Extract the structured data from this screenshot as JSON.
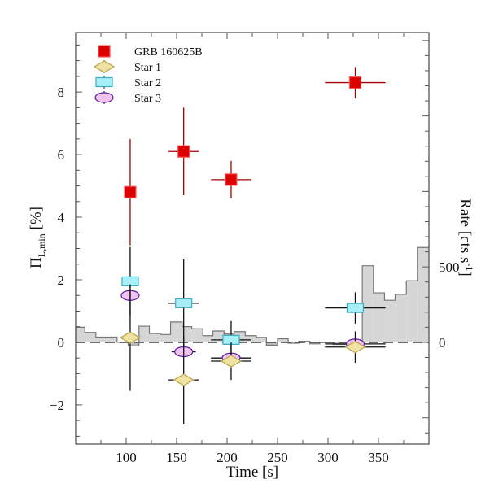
{
  "chart_data": {
    "type": "scatter",
    "title": "",
    "xlabel": "Time [s]",
    "ylabel_main": "Π",
    "ylabel_sub": "L,min",
    "ylabel_unit": " [%]",
    "y2label": "Rate [cts s",
    "y2label_sup": "-1",
    "y2label_end": "]",
    "xlim": [
      50,
      400
    ],
    "ylim": [
      -3.25,
      9.9
    ],
    "y2lim": [
      -674,
      2053
    ],
    "xticks": [
      100,
      150,
      200,
      250,
      300,
      350
    ],
    "xtick_labels": [
      "100",
      "150",
      "200",
      "250",
      "300",
      "350"
    ],
    "yticks": [
      -2,
      0,
      2,
      4,
      6,
      8
    ],
    "ytick_labels": [
      "−2",
      "0",
      "2",
      "4",
      "6",
      "8"
    ],
    "y2ticks": [
      0,
      500
    ],
    "y2tick_labels": [
      "0",
      "500"
    ],
    "legend_position": "top-left",
    "reference_line": 0,
    "series": [
      {
        "name": "GRB 160625B",
        "marker": "square",
        "fill": "#dd0000",
        "stroke": "#ff5555",
        "errcolor": "#aa0000",
        "points": [
          {
            "x": 104,
            "y": 4.8,
            "xerr": 5,
            "yerr": 1.7
          },
          {
            "x": 157,
            "y": 6.1,
            "xerr": 15,
            "yerr": 1.4
          },
          {
            "x": 204,
            "y": 5.2,
            "xerr": 20,
            "yerr": 0.6
          },
          {
            "x": 327,
            "y": 8.3,
            "xerr": 30,
            "yerr": 0.5
          }
        ]
      },
      {
        "name": "Star 1",
        "marker": "diamond",
        "fill": "#efe2a2",
        "stroke": "#b8a44a",
        "errcolor": "#111111",
        "points": [
          {
            "x": 104,
            "y": 0.15,
            "xerr": 5,
            "yerr": 1.7
          },
          {
            "x": 157,
            "y": -1.2,
            "xerr": 15,
            "yerr": 1.4
          },
          {
            "x": 204,
            "y": -0.6,
            "xerr": 20,
            "yerr": 0.6
          },
          {
            "x": 327,
            "y": -0.15,
            "xerr": 30,
            "yerr": 0.5
          }
        ]
      },
      {
        "name": "Star 2",
        "marker": "rect",
        "fill": "#a8eef6",
        "stroke": "#3aaec0",
        "errcolor": "#111111",
        "points": [
          {
            "x": 104,
            "y": 1.95,
            "xerr": 5,
            "yerr": 1.1
          },
          {
            "x": 157,
            "y": 1.25,
            "xerr": 15,
            "yerr": 1.4
          },
          {
            "x": 204,
            "y": 0.08,
            "xerr": 20,
            "yerr": 0.6
          },
          {
            "x": 327,
            "y": 1.1,
            "xerr": 30,
            "yerr": 0.5
          }
        ]
      },
      {
        "name": "Star 3",
        "marker": "ellipse",
        "fill": "#f2c2f2",
        "stroke": "#5a1aa0",
        "errcolor": "#111111",
        "points": [
          {
            "x": 104,
            "y": 1.5,
            "xerr": 5,
            "yerr": 0
          },
          {
            "x": 157,
            "y": -0.3,
            "xerr": 12,
            "yerr": 0
          },
          {
            "x": 204,
            "y": -0.5,
            "xerr": 20,
            "yerr": 0
          },
          {
            "x": 327,
            "y": -0.05,
            "xerr": 30,
            "yerr": 0
          }
        ]
      }
    ],
    "histogram": {
      "name": "Rate",
      "color": "#d6d6d6",
      "edges": [
        50,
        59,
        70,
        91,
        102,
        112.7,
        123,
        134,
        144,
        155.5,
        165,
        176,
        186,
        197,
        207,
        218,
        229,
        239,
        250,
        260.6,
        271,
        282,
        292,
        305,
        334,
        345,
        356,
        366.5,
        377.6,
        388.5,
        400
      ],
      "values": [
        100,
        66,
        35,
        0,
        -24,
        107,
        59,
        52,
        135,
        104,
        90,
        44,
        75,
        55,
        71,
        44,
        33,
        -19,
        24,
        -6,
        7,
        -10,
        -2,
        -14,
        508,
        328,
        279,
        318,
        408,
        629
      ]
    }
  }
}
